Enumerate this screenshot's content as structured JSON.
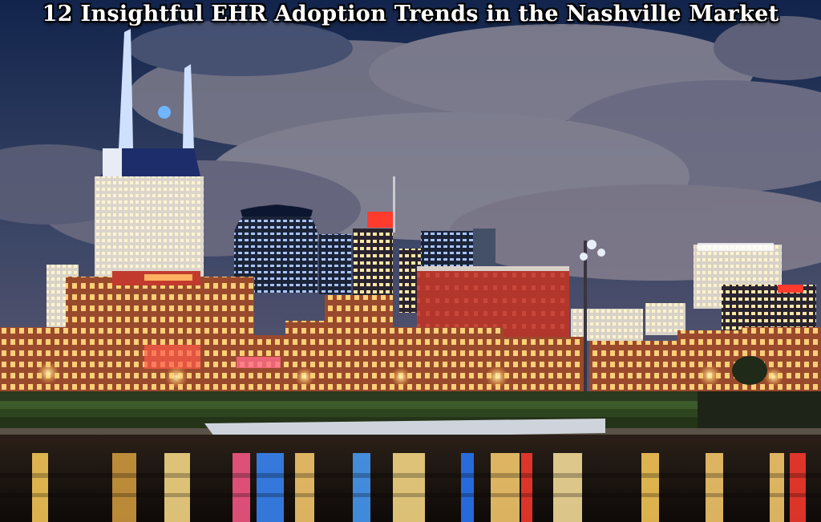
{
  "headline": "12 Insightful EHR Adoption Trends in the Nashville Market",
  "colors": {
    "sky_top": "#14254d",
    "sky_mid": "#3d4a6b",
    "cloud": "#8c8a98",
    "water": "#1a1410",
    "brick_red": "#b5352c",
    "window_light": "#ffd98a",
    "accent_blue": "#3aa0ff",
    "accent_red": "#ff3b2e"
  },
  "scene": {
    "subject": "nashville-skyline-at-night",
    "elements": [
      "night-sky",
      "clouds",
      "at-t-tower",
      "skyscrapers",
      "brick-buildings",
      "riverfront-park",
      "river-reflections"
    ]
  }
}
